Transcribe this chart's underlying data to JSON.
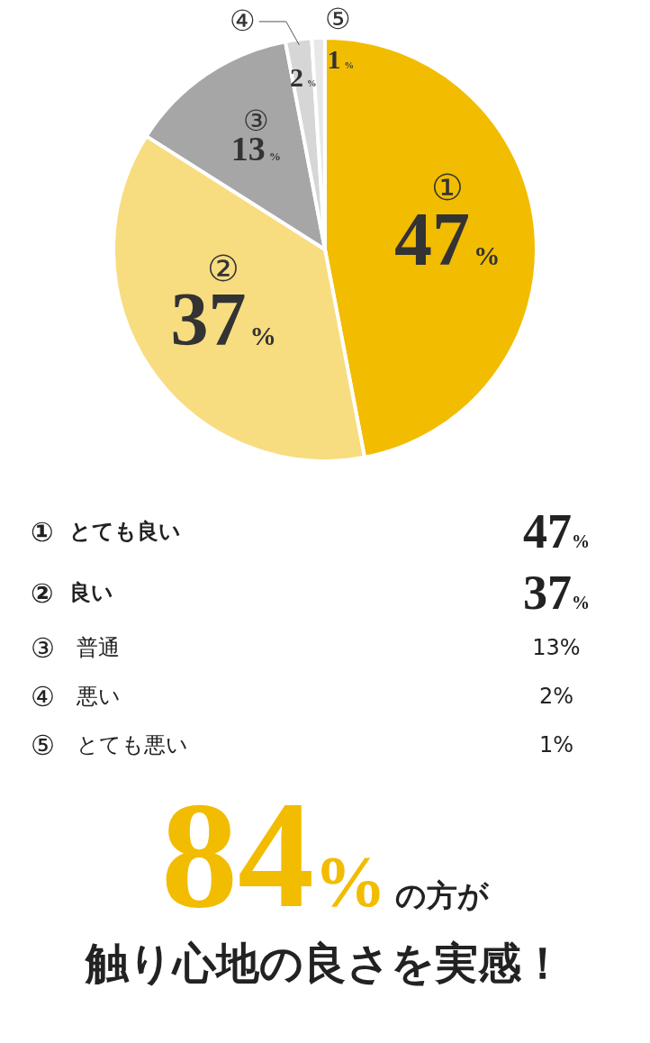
{
  "chart_data": {
    "type": "pie",
    "categories": [
      "①",
      "②",
      "③",
      "④",
      "⑤"
    ],
    "values": [
      47,
      37,
      13,
      2,
      1
    ],
    "colors": [
      "#f2bc00",
      "#f7dd80",
      "#a6a6a6",
      "#d6d6d6",
      "#e8e8e8"
    ],
    "value_labels": [
      "47%",
      "37%",
      "13%",
      "2%",
      "1%"
    ],
    "annotations": [
      "とても良い",
      "良い",
      "普通",
      "悪い",
      "とても悪い",
      "84%の方が",
      "触り心地の良さを実感！"
    ]
  }
}
